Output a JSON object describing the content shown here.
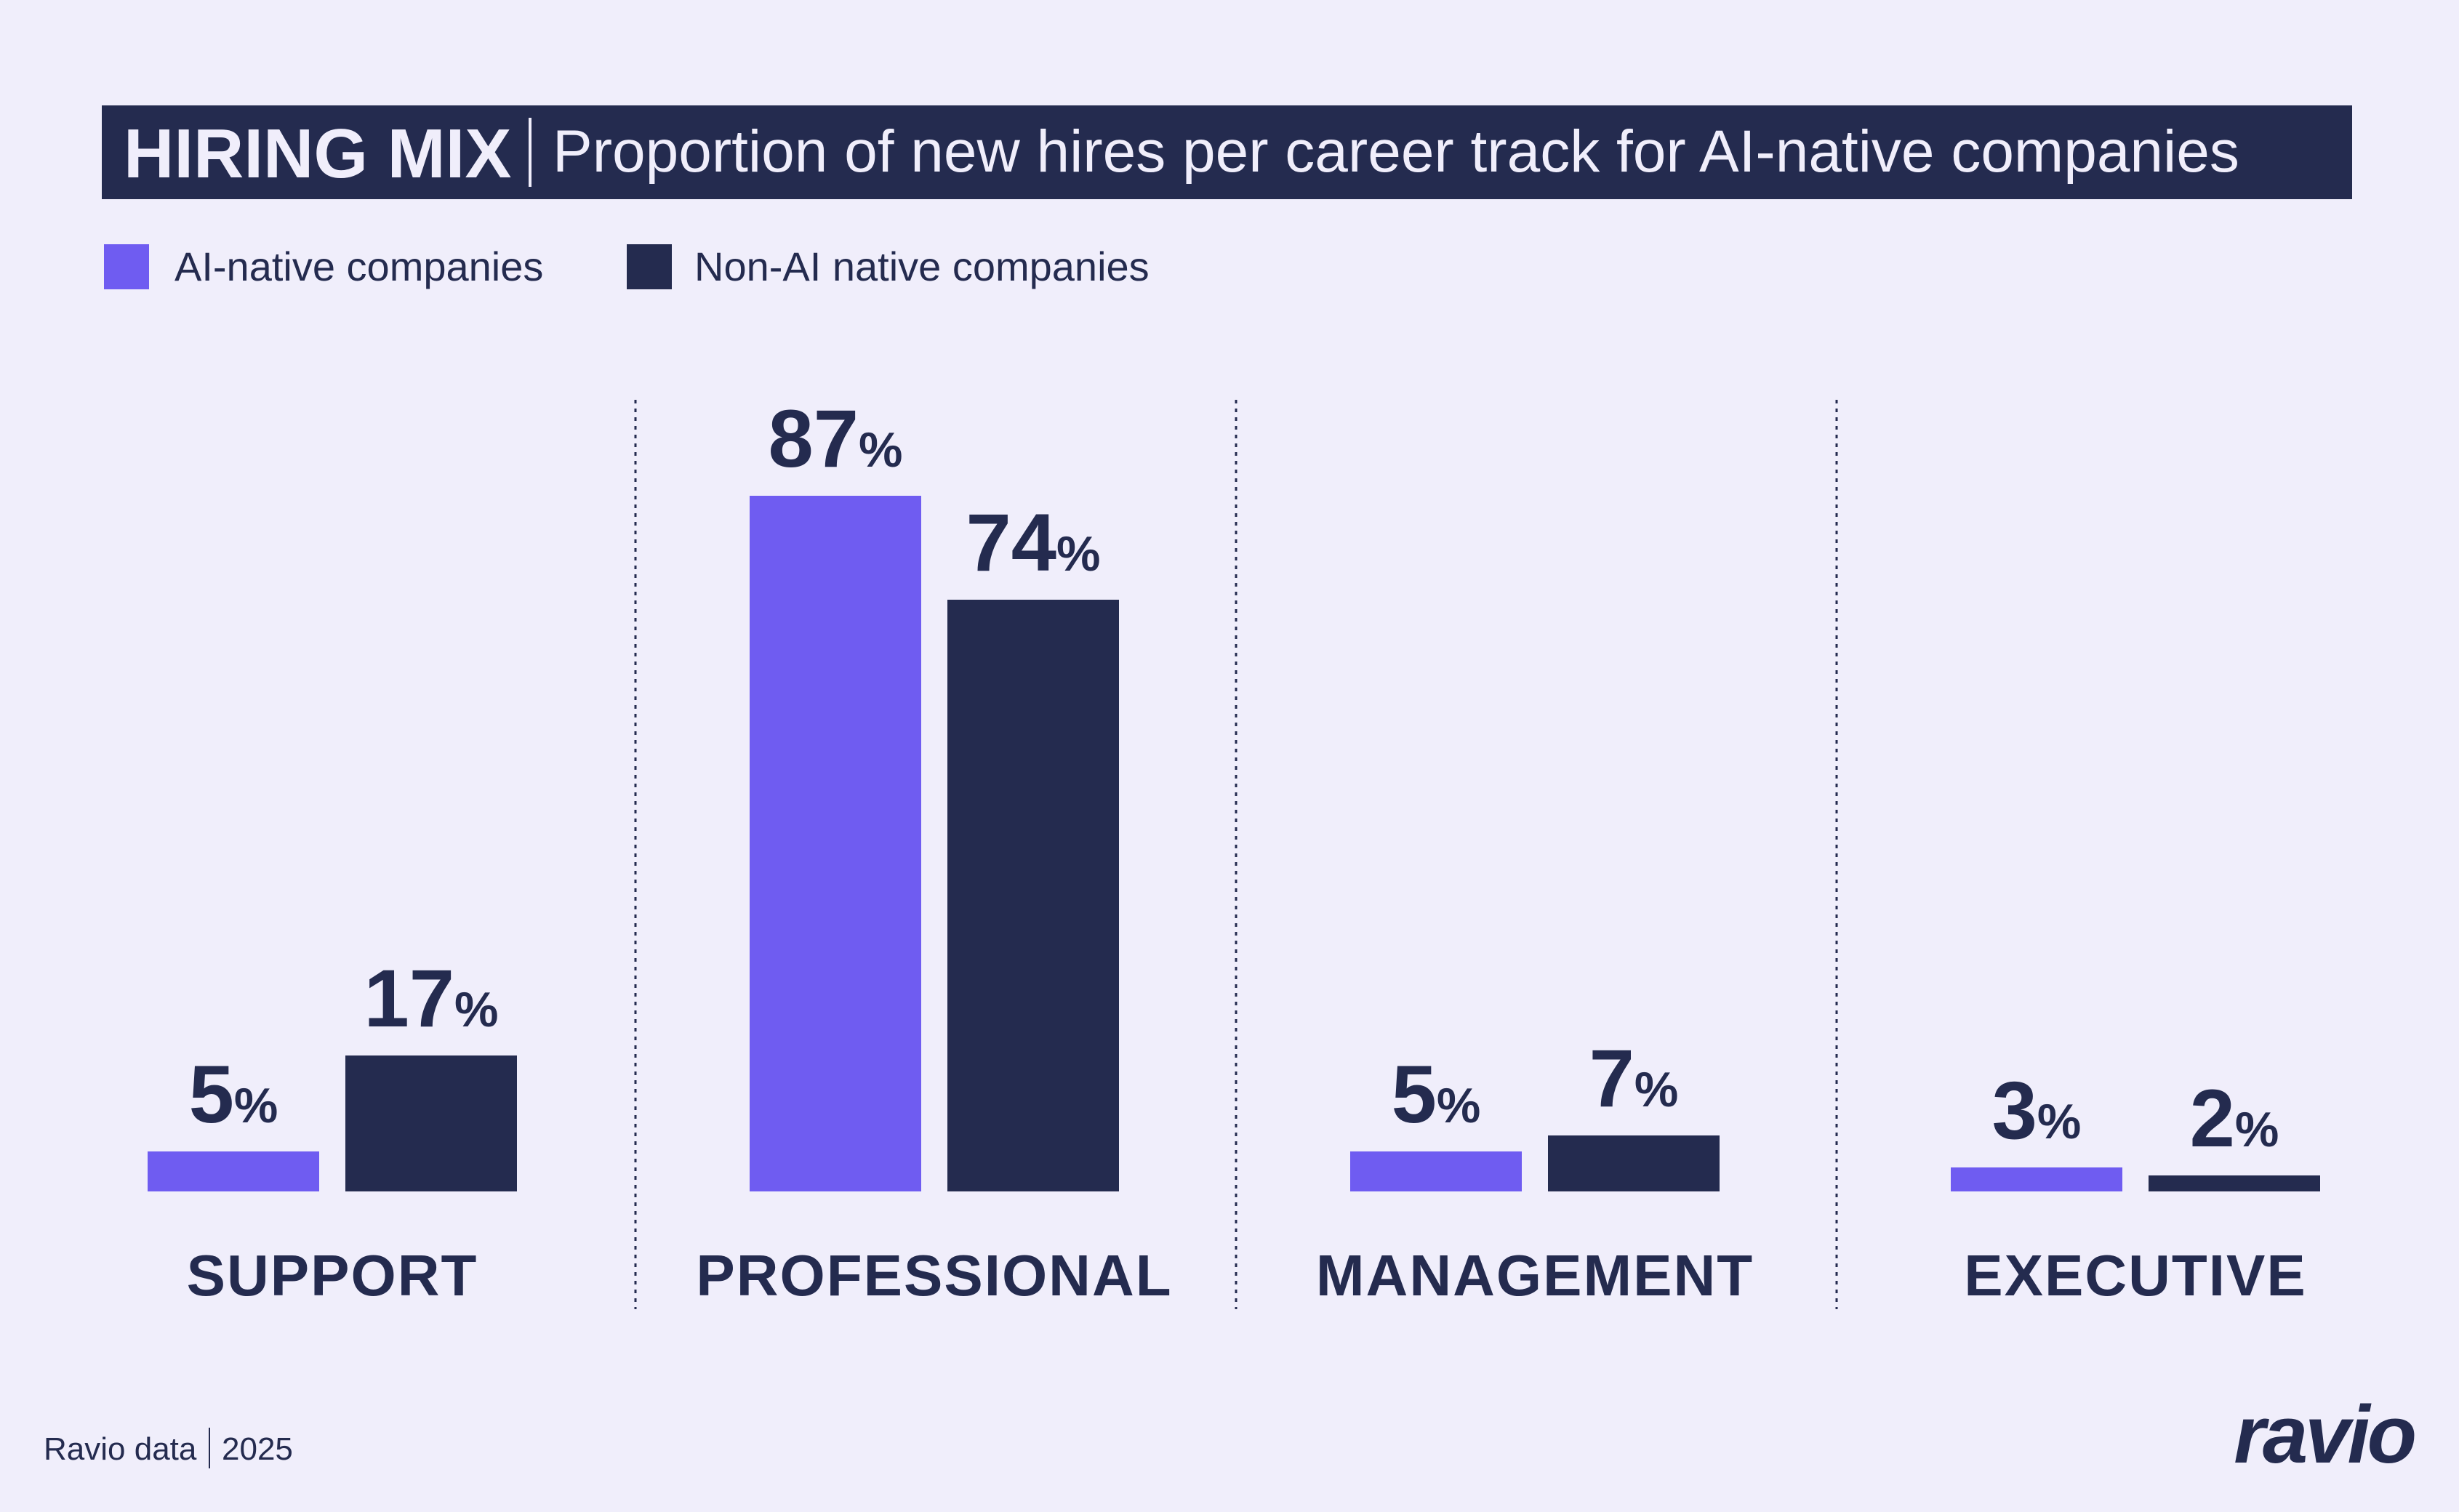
{
  "header": {
    "title_bold": "HIRING MIX",
    "title_rest": "Proportion of new hires per career track for AI-native companies"
  },
  "footer": {
    "source": "Ravio data",
    "year": "2025",
    "logo": "ravio"
  },
  "colors": {
    "background": "#f0eefb",
    "ai_native": "#6f5cf1",
    "non_ai": "#242b4f"
  },
  "chart_data": {
    "type": "bar",
    "title": "HIRING MIX | Proportion of new hires per career track for AI-native companies",
    "categories": [
      "SUPPORT",
      "PROFESSIONAL",
      "MANAGEMENT",
      "EXECUTIVE"
    ],
    "series": [
      {
        "name": "AI-native companies",
        "values": [
          5,
          87,
          5,
          3
        ]
      },
      {
        "name": "Non-AI native companies",
        "values": [
          17,
          74,
          7,
          2
        ]
      }
    ],
    "unit": "%",
    "xlabel": "",
    "ylabel": "",
    "ylim": [
      0,
      100
    ],
    "grid": false,
    "legend": "top-left"
  }
}
